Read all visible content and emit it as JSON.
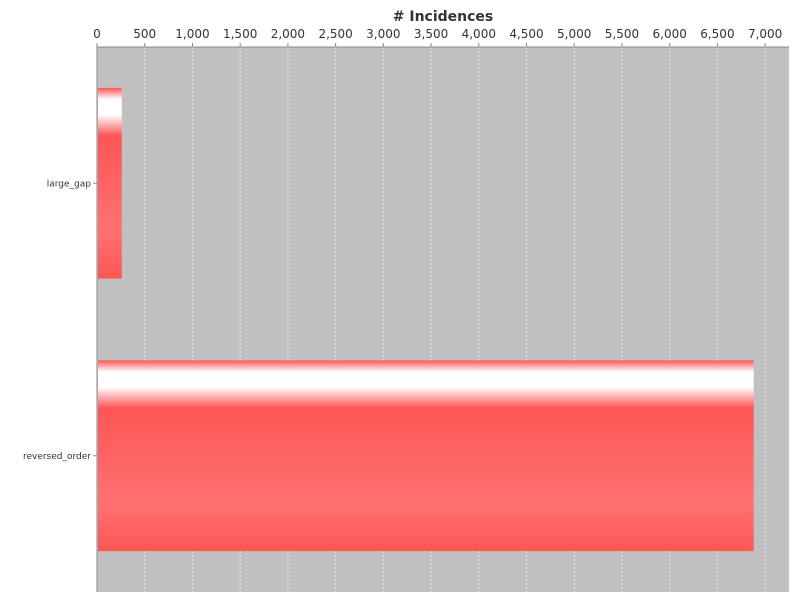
{
  "chart_data": {
    "type": "bar",
    "orientation": "horizontal",
    "title": "",
    "xlabel": "# Incidences",
    "ylabel": "",
    "categories": [
      "large_gap",
      "reversed_order"
    ],
    "values": [
      260,
      6880
    ],
    "xlim": [
      0,
      7250
    ],
    "x_ticks": [
      0,
      500,
      1000,
      1500,
      2000,
      2500,
      3000,
      3500,
      4000,
      4500,
      5000,
      5500,
      6000,
      6500,
      7000
    ],
    "x_tick_labels": [
      "0",
      "500",
      "1,000",
      "1,500",
      "2,000",
      "2,500",
      "3,000",
      "3,500",
      "4,000",
      "4,500",
      "5,000",
      "5,500",
      "6,000",
      "6,500",
      "7,000"
    ],
    "x_axis_position": "top",
    "grid": true,
    "legend": "none",
    "colors": {
      "plot_background": "#c0c0c0",
      "bar": "#ff5555",
      "bar_highlight": "#ffffff",
      "gridline": "#e8e8e8",
      "axis_line": "#888888"
    }
  }
}
